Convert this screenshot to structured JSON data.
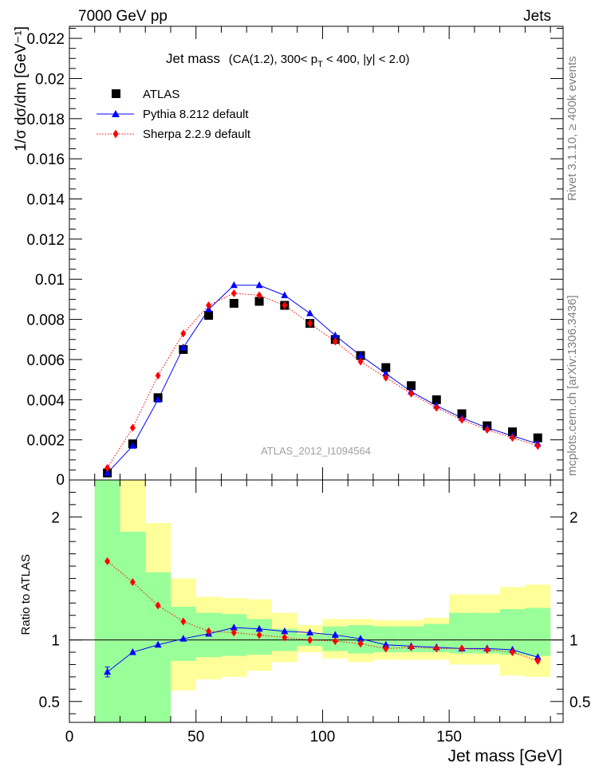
{
  "header": {
    "left": "7000 GeV pp",
    "right": "Jets"
  },
  "title": {
    "main": "Jet mass",
    "cut": "(CA(1.2), 300< p",
    "cut_sub": "T",
    "cut_tail": " < 400, |y| < 2.0)"
  },
  "side_labels": {
    "rivet": "Rivet 3.1.10, ≥ 400k events",
    "mcplots": "mcplots.cern.ch [arXiv:1306.3436]"
  },
  "watermark": "ATLAS_2012_I1094564",
  "colors": {
    "atlas": "#000000",
    "pythia": "#0000ff",
    "sherpa": "#ff0000",
    "band_inner": "#99ff99",
    "band_outer": "#ffff99"
  },
  "chart_data": [
    {
      "type": "scatter",
      "panel": "main",
      "ylabel": "1/σ dσ/dm [GeV⁻¹]",
      "xlim": [
        0,
        195
      ],
      "ylim": [
        0,
        0.0226
      ],
      "yticks": [
        0.002,
        0.004,
        0.006,
        0.008,
        0.01,
        0.012,
        0.014,
        0.016,
        0.018,
        0.02,
        0.022
      ],
      "ytick_labels": [
        "0.002",
        "0.004",
        "0.006",
        "0.008",
        "0.01",
        "0.012",
        "0.014",
        "0.016",
        "0.018",
        "0.02",
        "0.022"
      ],
      "x": [
        15,
        25,
        35,
        45,
        55,
        65,
        75,
        85,
        95,
        105,
        115,
        125,
        135,
        145,
        155,
        165,
        175,
        185
      ],
      "series": [
        {
          "name": "ATLAS",
          "style": "square-markers",
          "values": [
            0.00035,
            0.0018,
            0.0041,
            0.0065,
            0.0082,
            0.0088,
            0.0089,
            0.0087,
            0.0078,
            0.007,
            0.0062,
            0.0056,
            0.0047,
            0.004,
            0.0033,
            0.0027,
            0.0024,
            0.0021
          ]
        },
        {
          "name": "Pythia 8.212 default",
          "style": "solid-triangles",
          "values": [
            0.00035,
            0.0017,
            0.004,
            0.0066,
            0.0085,
            0.0097,
            0.0097,
            0.0092,
            0.0083,
            0.0072,
            0.0062,
            0.0053,
            0.0044,
            0.0037,
            0.0031,
            0.0026,
            0.0022,
            0.0018
          ]
        },
        {
          "name": "Sherpa 2.2.9 default",
          "style": "dotted-diamonds",
          "values": [
            0.0006,
            0.0026,
            0.0052,
            0.0073,
            0.0087,
            0.0093,
            0.0092,
            0.0087,
            0.0078,
            0.0069,
            0.0059,
            0.0051,
            0.0043,
            0.0036,
            0.003,
            0.0025,
            0.0021,
            0.0017
          ]
        }
      ]
    },
    {
      "type": "scatter",
      "panel": "ratio",
      "ylabel": "Ratio to ATLAS",
      "xlabel": "Jet mass [GeV]",
      "xlim": [
        0,
        195
      ],
      "ylim": [
        0.33,
        2.3
      ],
      "xticks": [
        0,
        50,
        100,
        150
      ],
      "xtick_labels": [
        "0",
        "50",
        "100",
        "150"
      ],
      "yticks": [
        0.5,
        1,
        2
      ],
      "ytick_labels": [
        "0.5",
        "1",
        "2"
      ],
      "bins": [
        [
          10,
          20
        ],
        [
          20,
          30
        ],
        [
          30,
          40
        ],
        [
          40,
          50
        ],
        [
          50,
          60
        ],
        [
          60,
          70
        ],
        [
          70,
          80
        ],
        [
          80,
          90
        ],
        [
          90,
          100
        ],
        [
          100,
          110
        ],
        [
          110,
          120
        ],
        [
          120,
          130
        ],
        [
          130,
          140
        ],
        [
          140,
          150
        ],
        [
          150,
          160
        ],
        [
          160,
          170
        ],
        [
          170,
          180
        ],
        [
          180,
          190
        ]
      ],
      "band_inner": [
        [
          0.33,
          2.3
        ],
        [
          0.33,
          1.88
        ],
        [
          0.33,
          1.55
        ],
        [
          0.83,
          1.27
        ],
        [
          0.86,
          1.22
        ],
        [
          0.87,
          1.21
        ],
        [
          0.88,
          1.17
        ],
        [
          0.91,
          1.09
        ],
        [
          0.95,
          1.05
        ],
        [
          0.91,
          1.11
        ],
        [
          0.89,
          1.12
        ],
        [
          0.9,
          1.11
        ],
        [
          0.9,
          1.11
        ],
        [
          0.9,
          1.13
        ],
        [
          0.89,
          1.22
        ],
        [
          0.89,
          1.22
        ],
        [
          0.88,
          1.25
        ],
        [
          0.87,
          1.26
        ]
      ],
      "band_outer": [
        [
          0.33,
          2.3
        ],
        [
          0.33,
          2.3
        ],
        [
          0.33,
          1.95
        ],
        [
          0.59,
          1.5
        ],
        [
          0.68,
          1.35
        ],
        [
          0.7,
          1.34
        ],
        [
          0.75,
          1.33
        ],
        [
          0.82,
          1.22
        ],
        [
          0.9,
          1.12
        ],
        [
          0.85,
          1.17
        ],
        [
          0.82,
          1.17
        ],
        [
          0.84,
          1.16
        ],
        [
          0.84,
          1.16
        ],
        [
          0.84,
          1.18
        ],
        [
          0.8,
          1.37
        ],
        [
          0.8,
          1.37
        ],
        [
          0.71,
          1.43
        ],
        [
          0.7,
          1.45
        ]
      ],
      "x": [
        15,
        25,
        35,
        45,
        55,
        65,
        75,
        85,
        95,
        105,
        115,
        125,
        135,
        145,
        155,
        165,
        175,
        185
      ],
      "series": [
        {
          "name": "Pythia 8.212 default",
          "values": [
            0.74,
            0.9,
            0.96,
            1.01,
            1.05,
            1.1,
            1.09,
            1.07,
            1.06,
            1.04,
            1.01,
            0.96,
            0.95,
            0.94,
            0.93,
            0.93,
            0.92,
            0.86
          ],
          "errors": [
            0.04,
            0,
            0,
            0,
            0,
            0,
            0,
            0,
            0,
            0,
            0,
            0,
            0,
            0,
            0,
            0,
            0,
            0
          ]
        },
        {
          "name": "Sherpa 2.2.9 default",
          "values": [
            1.64,
            1.47,
            1.28,
            1.15,
            1.07,
            1.06,
            1.04,
            1.02,
            1.0,
            0.99,
            0.97,
            0.93,
            0.94,
            0.93,
            0.93,
            0.92,
            0.9,
            0.83
          ]
        }
      ]
    }
  ]
}
